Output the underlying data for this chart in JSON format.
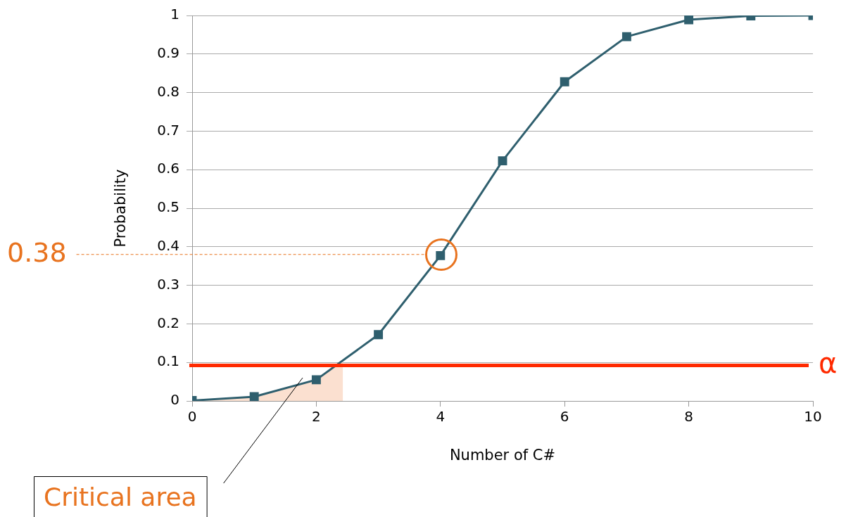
{
  "chart_data": {
    "type": "line",
    "xlabel": "Number of C#",
    "ylabel": "Probability",
    "x": [
      0,
      1,
      2,
      3,
      4,
      5,
      6,
      7,
      8,
      9,
      10
    ],
    "series": [
      {
        "type": "area",
        "color": "#fbe0d0",
        "marker": "none",
        "x": [
          0,
          1,
          2,
          2.43
        ],
        "values": [
          0.001,
          0.011,
          0.055,
          0.105
        ]
      },
      {
        "color": "#2f5f6e",
        "values": [
          0.001,
          0.011,
          0.055,
          0.172,
          0.377,
          0.623,
          0.828,
          0.945,
          0.989,
          0.999,
          1.0
        ]
      }
    ],
    "xlim": [
      0,
      10
    ],
    "xticks": [
      0,
      2,
      4,
      6,
      8,
      10
    ],
    "ylim": [
      0,
      1
    ],
    "yticks": [
      0,
      0.1,
      0.2,
      0.3,
      0.4,
      0.5,
      0.6,
      0.7,
      0.8,
      0.9,
      1
    ],
    "grid": "y",
    "marker": "square",
    "legend": false,
    "ref_lines": [
      {
        "axis": "y",
        "value": 0.092,
        "label": "α",
        "color": "#ff2a00"
      },
      {
        "axis": "y",
        "value": 0.38,
        "label": "0.38",
        "color": "#e8731f",
        "line_style": "dashed"
      }
    ],
    "annotations": [
      "Critical area"
    ]
  }
}
